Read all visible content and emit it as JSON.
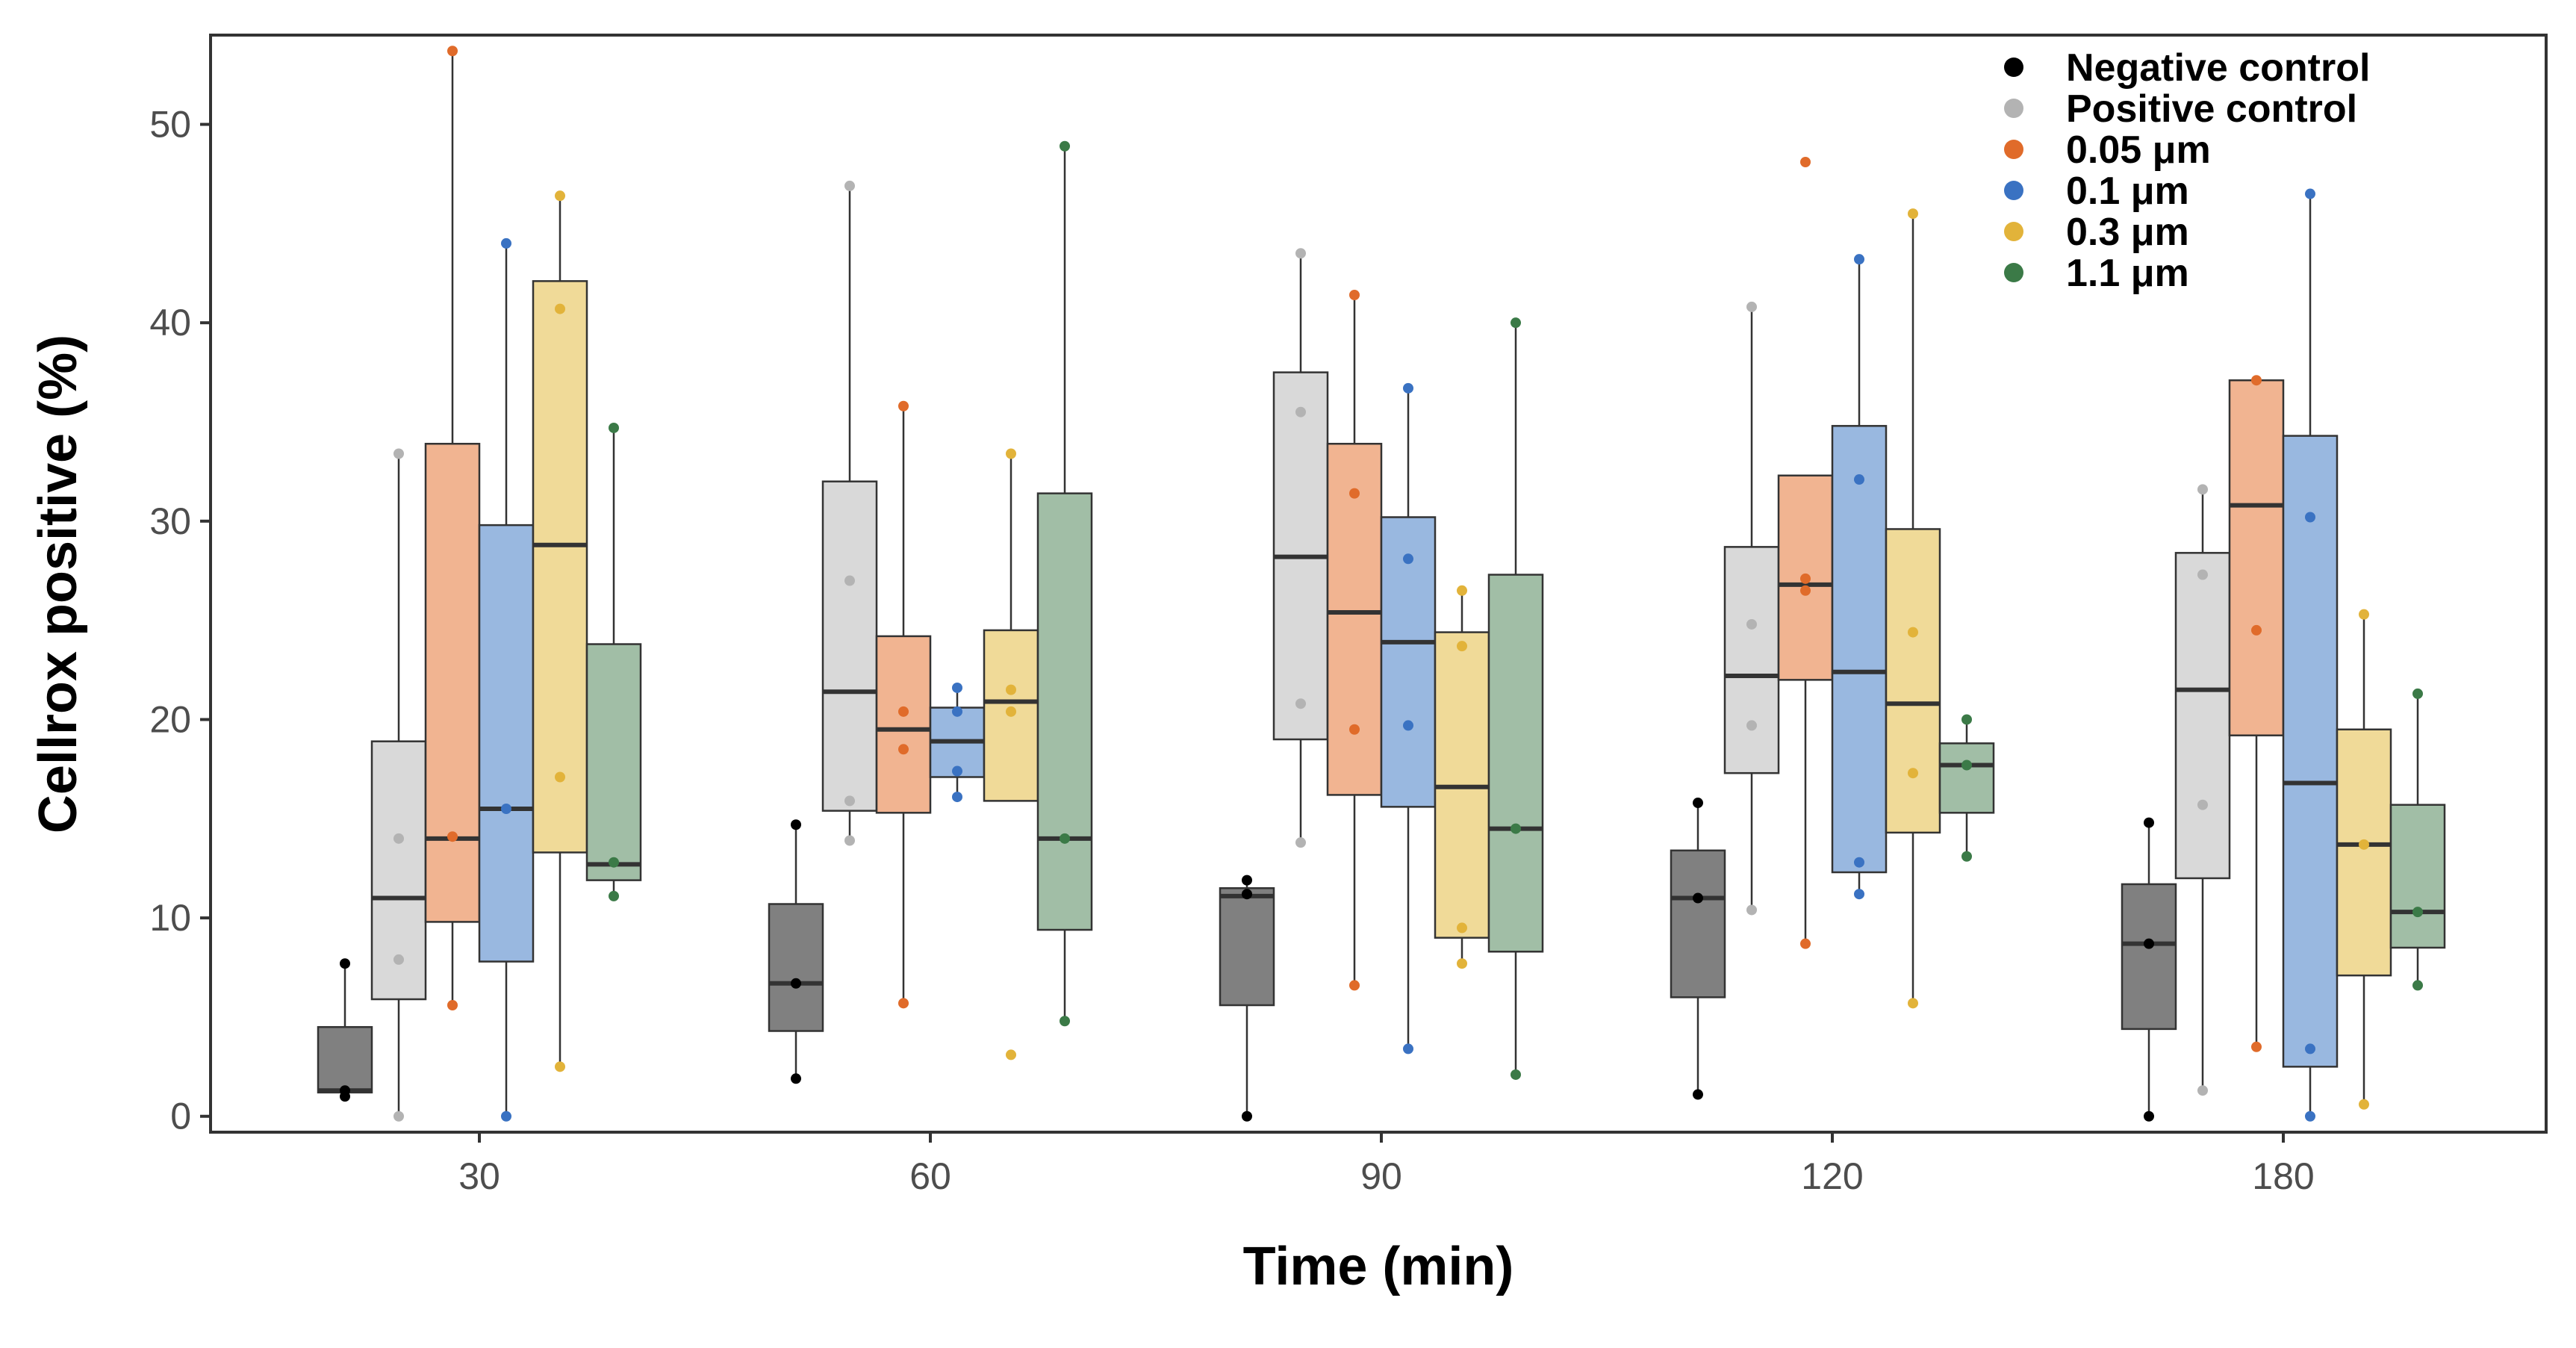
{
  "chart_data": {
    "type": "box",
    "xlabel": "Time (min)",
    "ylabel": "Cellrox positive (%)",
    "categories": [
      "30",
      "60",
      "90",
      "120",
      "180"
    ],
    "ylim": [
      -0.8,
      54.5
    ],
    "yticks": [
      0,
      10,
      20,
      30,
      40,
      50
    ],
    "grid": false,
    "legend_position": "top-right",
    "series": [
      {
        "name": "Negative control",
        "color": "#000000",
        "fill": "#808080",
        "boxes": [
          {
            "q1": 1.2,
            "median": 1.3,
            "q3": 4.5,
            "whisker_low": 1.0,
            "whisker_high": 7.7,
            "points": [
              7.7,
              1.3,
              1.0
            ]
          },
          {
            "q1": 4.3,
            "median": 6.7,
            "q3": 10.7,
            "whisker_low": 1.9,
            "whisker_high": 14.7,
            "points": [
              14.7,
              6.7,
              1.9
            ]
          },
          {
            "q1": 5.6,
            "median": 11.1,
            "q3": 11.5,
            "whisker_low": 0.0,
            "whisker_high": 11.9,
            "points": [
              11.9,
              11.2,
              0.0
            ]
          },
          {
            "q1": 6.0,
            "median": 11.0,
            "q3": 13.4,
            "whisker_low": 1.1,
            "whisker_high": 15.8,
            "points": [
              15.8,
              11.0,
              1.1
            ]
          },
          {
            "q1": 4.4,
            "median": 8.7,
            "q3": 11.7,
            "whisker_low": 0.0,
            "whisker_high": 14.8,
            "points": [
              14.8,
              8.7,
              0.0
            ]
          }
        ]
      },
      {
        "name": "Positive control",
        "color": "#b3b3b3",
        "fill": "#d9d9d9",
        "boxes": [
          {
            "q1": 5.9,
            "median": 11.0,
            "q3": 18.9,
            "whisker_low": 0.0,
            "whisker_high": 33.4,
            "points": [
              33.4,
              14.0,
              7.9,
              0.0
            ]
          },
          {
            "q1": 15.4,
            "median": 21.4,
            "q3": 32.0,
            "whisker_low": 13.9,
            "whisker_high": 46.9,
            "points": [
              46.9,
              27.0,
              15.9,
              13.9
            ]
          },
          {
            "q1": 19.0,
            "median": 28.2,
            "q3": 37.5,
            "whisker_low": 13.8,
            "whisker_high": 43.5,
            "points": [
              43.5,
              35.5,
              20.8,
              13.8
            ]
          },
          {
            "q1": 17.3,
            "median": 22.2,
            "q3": 28.7,
            "whisker_low": 10.4,
            "whisker_high": 40.8,
            "points": [
              40.8,
              24.8,
              19.7,
              10.4
            ]
          },
          {
            "q1": 12.0,
            "median": 21.5,
            "q3": 28.4,
            "whisker_low": 1.3,
            "whisker_high": 31.6,
            "points": [
              31.6,
              27.3,
              15.7,
              1.3
            ]
          }
        ]
      },
      {
        "name": "0.05 μm",
        "color": "#e06b2a",
        "fill": "#f1b491",
        "boxes": [
          {
            "q1": 9.8,
            "median": 14.0,
            "q3": 33.9,
            "whisker_low": 5.6,
            "whisker_high": 53.7,
            "points": [
              53.7,
              14.1,
              5.6
            ]
          },
          {
            "q1": 15.3,
            "median": 19.5,
            "q3": 24.2,
            "whisker_low": 5.7,
            "whisker_high": 35.8,
            "points": [
              35.8,
              20.4,
              18.5,
              5.7
            ]
          },
          {
            "q1": 16.2,
            "median": 25.4,
            "q3": 33.9,
            "whisker_low": 6.6,
            "whisker_high": 41.4,
            "points": [
              41.4,
              31.4,
              19.5,
              6.6
            ]
          },
          {
            "q1": 22.0,
            "median": 26.8,
            "q3": 32.3,
            "whisker_low": 8.7,
            "whisker_high": 32.3,
            "points": [
              48.1,
              27.1,
              26.5,
              8.7
            ]
          },
          {
            "q1": 19.2,
            "median": 30.8,
            "q3": 37.1,
            "whisker_low": 3.5,
            "whisker_high": 37.1,
            "points": [
              37.1,
              24.5,
              3.5
            ]
          }
        ]
      },
      {
        "name": "0.1 μm",
        "color": "#3a72c2",
        "fill": "#99b8e0",
        "boxes": [
          {
            "q1": 7.8,
            "median": 15.5,
            "q3": 29.8,
            "whisker_low": 0.0,
            "whisker_high": 44.0,
            "points": [
              44.0,
              15.5,
              0.0
            ]
          },
          {
            "q1": 17.1,
            "median": 18.9,
            "q3": 20.6,
            "whisker_low": 16.1,
            "whisker_high": 21.6,
            "points": [
              21.6,
              20.4,
              17.4,
              16.1
            ]
          },
          {
            "q1": 15.6,
            "median": 23.9,
            "q3": 30.2,
            "whisker_low": 3.4,
            "whisker_high": 36.7,
            "points": [
              36.7,
              28.1,
              19.7,
              3.4
            ]
          },
          {
            "q1": 12.3,
            "median": 22.4,
            "q3": 34.8,
            "whisker_low": 11.2,
            "whisker_high": 43.2,
            "points": [
              43.2,
              32.1,
              12.8,
              11.2
            ]
          },
          {
            "q1": 2.5,
            "median": 16.8,
            "q3": 34.3,
            "whisker_low": 0.0,
            "whisker_high": 46.5,
            "points": [
              46.5,
              30.2,
              3.4,
              0.0
            ]
          }
        ]
      },
      {
        "name": "0.3 μm",
        "color": "#e2b33a",
        "fill": "#f0da98",
        "boxes": [
          {
            "q1": 13.3,
            "median": 28.8,
            "q3": 42.1,
            "whisker_low": 2.5,
            "whisker_high": 46.4,
            "points": [
              46.4,
              40.7,
              17.1,
              2.5
            ]
          },
          {
            "q1": 15.9,
            "median": 20.9,
            "q3": 24.5,
            "whisker_low": 15.9,
            "whisker_high": 33.4,
            "points": [
              33.4,
              21.5,
              20.4,
              3.1
            ]
          },
          {
            "q1": 9.0,
            "median": 16.6,
            "q3": 24.4,
            "whisker_low": 7.7,
            "whisker_high": 26.5,
            "points": [
              26.5,
              23.7,
              9.5,
              7.7
            ]
          },
          {
            "q1": 14.3,
            "median": 20.8,
            "q3": 29.6,
            "whisker_low": 5.7,
            "whisker_high": 45.5,
            "points": [
              45.5,
              24.4,
              17.3,
              5.7
            ]
          },
          {
            "q1": 7.1,
            "median": 13.7,
            "q3": 19.5,
            "whisker_low": 0.6,
            "whisker_high": 25.3,
            "points": [
              25.3,
              13.7,
              0.6
            ]
          }
        ]
      },
      {
        "name": "1.1 μm",
        "color": "#3b7a47",
        "fill": "#a1bea6",
        "boxes": [
          {
            "q1": 11.9,
            "median": 12.7,
            "q3": 23.8,
            "whisker_low": 11.1,
            "whisker_high": 34.7,
            "points": [
              34.7,
              12.8,
              11.1
            ]
          },
          {
            "q1": 9.4,
            "median": 14.0,
            "q3": 31.4,
            "whisker_low": 4.8,
            "whisker_high": 48.9,
            "points": [
              48.9,
              14.0,
              4.8
            ]
          },
          {
            "q1": 8.3,
            "median": 14.5,
            "q3": 27.3,
            "whisker_low": 2.1,
            "whisker_high": 40.0,
            "points": [
              40.0,
              14.5,
              2.1
            ]
          },
          {
            "q1": 15.3,
            "median": 17.7,
            "q3": 18.8,
            "whisker_low": 13.1,
            "whisker_high": 20.0,
            "points": [
              20.0,
              17.7,
              13.1
            ]
          },
          {
            "q1": 8.5,
            "median": 10.3,
            "q3": 15.7,
            "whisker_low": 6.6,
            "whisker_high": 21.3,
            "points": [
              21.3,
              10.3,
              6.6
            ]
          }
        ]
      }
    ]
  }
}
